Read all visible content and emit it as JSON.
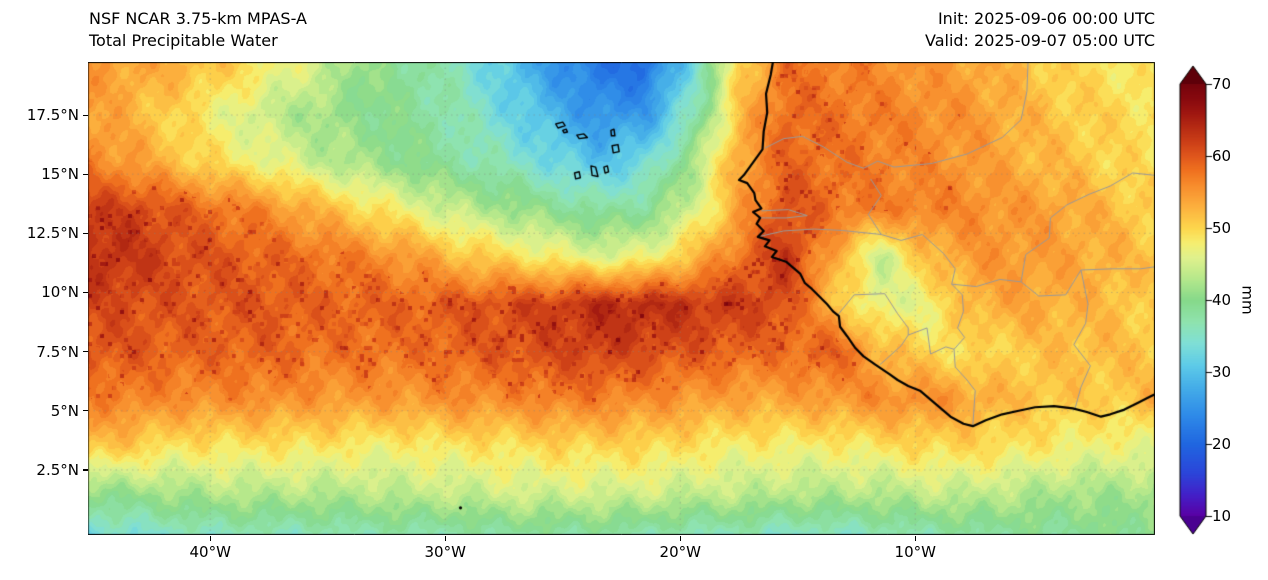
{
  "header": {
    "title_line1": "NSF NCAR 3.75-km MPAS-A",
    "title_line2": "Total Precipitable Water",
    "init_label": "Init: 2025-09-06 00:00 UTC",
    "valid_label": "Valid: 2025-09-07 05:00 UTC"
  },
  "axes": {
    "y_axis": [
      {
        "label": "17.5°N",
        "lat": 17.5
      },
      {
        "label": "15°N",
        "lat": 15
      },
      {
        "label": "12.5°N",
        "lat": 12.5
      },
      {
        "label": "10°N",
        "lat": 10
      },
      {
        "label": "7.5°N",
        "lat": 7.5
      },
      {
        "label": "5°N",
        "lat": 5
      },
      {
        "label": "2.5°N",
        "lat": 2.5
      }
    ],
    "x_axis": [
      {
        "label": "40°W",
        "lon": -40
      },
      {
        "label": "30°W",
        "lon": -30
      },
      {
        "label": "20°W",
        "lon": -20
      },
      {
        "label": "10°W",
        "lon": -10
      }
    ]
  },
  "colorbar": {
    "ticks": [
      10,
      20,
      30,
      40,
      50,
      60,
      70
    ],
    "unit": "mm",
    "under_color": "#4a0191",
    "over_color": "#5e0009",
    "stops": [
      [
        10,
        "#5a00a3"
      ],
      [
        13,
        "#4320c8"
      ],
      [
        16,
        "#2b45d9"
      ],
      [
        20,
        "#2066e0"
      ],
      [
        24,
        "#2e8ae8"
      ],
      [
        28,
        "#45aee8"
      ],
      [
        31,
        "#5ecbe8"
      ],
      [
        34,
        "#7fdfd6"
      ],
      [
        37,
        "#8fe3ae"
      ],
      [
        40,
        "#86d98a"
      ],
      [
        43,
        "#b5e88b"
      ],
      [
        46,
        "#e0f18c"
      ],
      [
        48,
        "#f6ee6f"
      ],
      [
        50,
        "#fdd74d"
      ],
      [
        53,
        "#fcb03e"
      ],
      [
        56,
        "#f78c2d"
      ],
      [
        58,
        "#f0721f"
      ],
      [
        60,
        "#e0571c"
      ],
      [
        62,
        "#cc3f17"
      ],
      [
        64,
        "#b62b13"
      ],
      [
        66,
        "#9f1710"
      ],
      [
        68,
        "#88090e"
      ],
      [
        70,
        "#75040c"
      ]
    ]
  },
  "chart_data": {
    "type": "heatmap",
    "title": "Total Precipitable Water",
    "model": "NSF NCAR 3.75-km MPAS-A",
    "init": "2025-09-06 00:00 UTC",
    "valid": "2025-09-07 05:00 UTC",
    "units": "mm",
    "value_range": [
      10,
      70
    ],
    "lon_range": [
      -45.2,
      0.2
    ],
    "lat_range": [
      -0.25,
      19.74
    ],
    "grid_lons": [
      -45.5,
      -43.5,
      -41.5,
      -39.5,
      -37.5,
      -35.5,
      -33.5,
      -31.5,
      -29.5,
      -27.5,
      -25.5,
      -23.5,
      -21.5,
      -19.5,
      -17.5,
      -15.5,
      -13.5,
      -11.5,
      -9.5,
      -7.5,
      -5.5,
      -3.5,
      -1.5,
      0.5
    ],
    "grid_lats": [
      19.5,
      17.5,
      15.5,
      13.5,
      11.5,
      9.5,
      7.5,
      5.5,
      3.5,
      1.5,
      -0.5
    ],
    "values_mm": [
      [
        55,
        54,
        53,
        51,
        48,
        45,
        41,
        39,
        36,
        31,
        26,
        22,
        21,
        33,
        50,
        58,
        57,
        56,
        55,
        54,
        52,
        50,
        49,
        48
      ],
      [
        55,
        53,
        50,
        47,
        44,
        42,
        40,
        39,
        37,
        33,
        29,
        25,
        26,
        36,
        52,
        59,
        58,
        57,
        56,
        55,
        53,
        51,
        50,
        49
      ],
      [
        57,
        55,
        52,
        49,
        47,
        44,
        42,
        40,
        38,
        36,
        33,
        30,
        33,
        42,
        54,
        59,
        58,
        57,
        56,
        55,
        53,
        52,
        50,
        49
      ],
      [
        62,
        62,
        60,
        58,
        56,
        53,
        50,
        47,
        44,
        42,
        40,
        38,
        39,
        45,
        54,
        61,
        58,
        57,
        57,
        56,
        55,
        54,
        52,
        50
      ],
      [
        64,
        63,
        61,
        60,
        59,
        58,
        57,
        55,
        52,
        50,
        48,
        46,
        47,
        52,
        58,
        63,
        54,
        44,
        52,
        55,
        55,
        54,
        53,
        51
      ],
      [
        61,
        61,
        60,
        60,
        60,
        59,
        59,
        59,
        60,
        61,
        62,
        64,
        64,
        63,
        62,
        61,
        52,
        46,
        47,
        53,
        54,
        53,
        52,
        50
      ],
      [
        60,
        60,
        59,
        59,
        59,
        58,
        58,
        58,
        59,
        60,
        61,
        62,
        61,
        60,
        59,
        58,
        60,
        53,
        50,
        49,
        51,
        52,
        52,
        51
      ],
      [
        57,
        57,
        56,
        56,
        56,
        55,
        55,
        55,
        56,
        56,
        57,
        57,
        56,
        55,
        54,
        54,
        55,
        56,
        56,
        54,
        52,
        51,
        51,
        53
      ],
      [
        52,
        51,
        49,
        49,
        49,
        49,
        48,
        48,
        49,
        49,
        50,
        50,
        50,
        49,
        48,
        48,
        48,
        49,
        50,
        50,
        49,
        48,
        47,
        47
      ],
      [
        40,
        41,
        42,
        43,
        43,
        43,
        43,
        44,
        44,
        45,
        45,
        45,
        45,
        44,
        44,
        43,
        43,
        43,
        44,
        44,
        43,
        42,
        42,
        42
      ],
      [
        32,
        33,
        34,
        35,
        35,
        35,
        36,
        36,
        36,
        37,
        37,
        37,
        36,
        35,
        35,
        34,
        34,
        35,
        36,
        37,
        38,
        38,
        39,
        40
      ]
    ]
  },
  "map": {
    "coastline": [
      [
        -16.05,
        19.78
      ],
      [
        -16.15,
        19.2
      ],
      [
        -16.35,
        18.4
      ],
      [
        -16.3,
        17.6
      ],
      [
        -16.45,
        16.8
      ],
      [
        -16.5,
        16.05
      ],
      [
        -16.9,
        15.5
      ],
      [
        -17.3,
        14.95
      ],
      [
        -17.5,
        14.75
      ],
      [
        -17.15,
        14.62
      ],
      [
        -16.85,
        14.2
      ],
      [
        -16.8,
        13.9
      ],
      [
        -16.55,
        13.55
      ],
      [
        -16.9,
        13.4
      ],
      [
        -16.6,
        13.15
      ],
      [
        -16.75,
        12.9
      ],
      [
        -16.45,
        12.6
      ],
      [
        -16.7,
        12.35
      ],
      [
        -16.2,
        12.2
      ],
      [
        -16.4,
        11.95
      ],
      [
        -15.9,
        11.75
      ],
      [
        -16.1,
        11.5
      ],
      [
        -15.5,
        11.3
      ],
      [
        -15.2,
        11.05
      ],
      [
        -14.9,
        10.8
      ],
      [
        -14.7,
        10.4
      ],
      [
        -14.4,
        10.15
      ],
      [
        -14.1,
        9.85
      ],
      [
        -13.75,
        9.5
      ],
      [
        -13.5,
        9.2
      ],
      [
        -13.25,
        9.0
      ],
      [
        -13.2,
        8.55
      ],
      [
        -12.9,
        8.15
      ],
      [
        -12.55,
        7.65
      ],
      [
        -12.2,
        7.3
      ],
      [
        -11.7,
        6.95
      ],
      [
        -11.1,
        6.55
      ],
      [
        -10.75,
        6.3
      ],
      [
        -10.3,
        6.05
      ],
      [
        -9.8,
        5.85
      ],
      [
        -9.15,
        5.3
      ],
      [
        -8.5,
        4.75
      ],
      [
        -7.95,
        4.45
      ],
      [
        -7.55,
        4.35
      ],
      [
        -7.0,
        4.6
      ],
      [
        -6.3,
        4.85
      ],
      [
        -5.6,
        5.0
      ],
      [
        -4.9,
        5.15
      ],
      [
        -4.1,
        5.2
      ],
      [
        -3.3,
        5.1
      ],
      [
        -2.7,
        4.95
      ],
      [
        -2.1,
        4.75
      ],
      [
        -1.7,
        4.85
      ],
      [
        -1.1,
        5.05
      ],
      [
        -0.5,
        5.35
      ],
      [
        0.0,
        5.6
      ],
      [
        0.3,
        5.75
      ]
    ],
    "borders": [
      [
        [
          -16.4,
          16.1
        ],
        [
          -15.6,
          16.5
        ],
        [
          -14.8,
          16.6
        ],
        [
          -13.9,
          16.15
        ],
        [
          -12.9,
          15.5
        ],
        [
          -12.2,
          15.25
        ],
        [
          -11.6,
          15.55
        ],
        [
          -10.9,
          15.3
        ],
        [
          -9.3,
          15.45
        ],
        [
          -7.8,
          15.85
        ],
        [
          -6.3,
          16.55
        ],
        [
          -5.5,
          17.3
        ],
        [
          -5.25,
          18.5
        ],
        [
          -5.2,
          19.78
        ]
      ],
      [
        [
          -11.9,
          14.8
        ],
        [
          -11.45,
          14.1
        ],
        [
          -12.0,
          13.3
        ],
        [
          -11.45,
          12.45
        ]
      ],
      [
        [
          -16.7,
          12.35
        ],
        [
          -15.6,
          12.6
        ],
        [
          -14.3,
          12.68
        ],
        [
          -13.1,
          12.62
        ],
        [
          -11.45,
          12.45
        ]
      ],
      [
        [
          -16.55,
          13.45
        ],
        [
          -15.4,
          13.5
        ],
        [
          -14.6,
          13.25
        ],
        [
          -15.5,
          13.15
        ],
        [
          -16.6,
          13.15
        ]
      ],
      [
        [
          -11.45,
          12.45
        ],
        [
          -10.6,
          12.2
        ],
        [
          -9.7,
          12.45
        ],
        [
          -8.8,
          11.65
        ],
        [
          -8.3,
          11.0
        ],
        [
          -8.45,
          10.35
        ],
        [
          -8.0,
          9.9
        ],
        [
          -7.95,
          9.2
        ],
        [
          -8.2,
          8.5
        ],
        [
          -7.9,
          8.1
        ],
        [
          -8.35,
          7.6
        ],
        [
          -8.3,
          6.85
        ],
        [
          -7.8,
          6.3
        ],
        [
          -7.45,
          5.85
        ],
        [
          -7.55,
          4.4
        ]
      ],
      [
        [
          -13.3,
          9.05
        ],
        [
          -12.6,
          9.9
        ],
        [
          -11.3,
          9.95
        ],
        [
          -10.75,
          9.1
        ],
        [
          -10.3,
          8.5
        ],
        [
          -10.3,
          8.2
        ],
        [
          -9.5,
          8.5
        ],
        [
          -9.35,
          7.4
        ],
        [
          -8.7,
          7.7
        ],
        [
          -8.35,
          7.6
        ]
      ],
      [
        [
          -11.5,
          6.95
        ],
        [
          -10.6,
          7.75
        ],
        [
          -10.3,
          8.2
        ]
      ],
      [
        [
          -3.2,
          5.1
        ],
        [
          -2.95,
          6.0
        ],
        [
          -2.55,
          6.9
        ],
        [
          -3.25,
          7.8
        ],
        [
          -2.75,
          8.7
        ],
        [
          -2.65,
          9.5
        ],
        [
          -2.95,
          10.95
        ]
      ],
      [
        [
          -5.5,
          10.45
        ],
        [
          -4.75,
          9.85
        ],
        [
          -3.6,
          9.9
        ],
        [
          -2.95,
          10.95
        ],
        [
          -1.6,
          11.0
        ],
        [
          -0.4,
          11.0
        ],
        [
          0.3,
          11.1
        ]
      ],
      [
        [
          -8.45,
          10.35
        ],
        [
          -7.4,
          10.25
        ],
        [
          -6.4,
          10.55
        ],
        [
          -5.5,
          10.45
        ]
      ],
      [
        [
          -5.5,
          10.45
        ],
        [
          -5.3,
          11.6
        ],
        [
          -4.3,
          12.3
        ],
        [
          -4.25,
          13.15
        ],
        [
          -3.55,
          13.7
        ],
        [
          -2.6,
          14.15
        ],
        [
          -1.7,
          14.5
        ],
        [
          -0.75,
          15.05
        ],
        [
          0.2,
          14.95
        ]
      ]
    ],
    "islands": [
      [
        [
          -25.3,
          17.12
        ],
        [
          -25.0,
          17.2
        ],
        [
          -24.9,
          17.05
        ],
        [
          -25.2,
          16.95
        ]
      ],
      [
        [
          -25.0,
          16.85
        ],
        [
          -24.85,
          16.9
        ],
        [
          -24.8,
          16.78
        ],
        [
          -24.95,
          16.75
        ]
      ],
      [
        [
          -24.4,
          16.65
        ],
        [
          -24.1,
          16.7
        ],
        [
          -23.95,
          16.55
        ],
        [
          -24.3,
          16.5
        ]
      ],
      [
        [
          -22.95,
          16.85
        ],
        [
          -22.82,
          16.9
        ],
        [
          -22.78,
          16.62
        ],
        [
          -22.93,
          16.62
        ]
      ],
      [
        [
          -22.9,
          16.2
        ],
        [
          -22.65,
          16.25
        ],
        [
          -22.6,
          15.95
        ],
        [
          -22.85,
          15.9
        ]
      ],
      [
        [
          -23.25,
          15.3
        ],
        [
          -23.1,
          15.35
        ],
        [
          -23.05,
          15.1
        ],
        [
          -23.2,
          15.05
        ]
      ],
      [
        [
          -23.8,
          15.35
        ],
        [
          -23.6,
          15.3
        ],
        [
          -23.5,
          14.9
        ],
        [
          -23.75,
          14.95
        ]
      ],
      [
        [
          -24.5,
          15.05
        ],
        [
          -24.3,
          15.1
        ],
        [
          -24.25,
          14.85
        ],
        [
          -24.45,
          14.8
        ]
      ]
    ],
    "point_features": [
      {
        "name": "small-islet",
        "lon": -29.35,
        "lat": 0.9
      }
    ]
  }
}
